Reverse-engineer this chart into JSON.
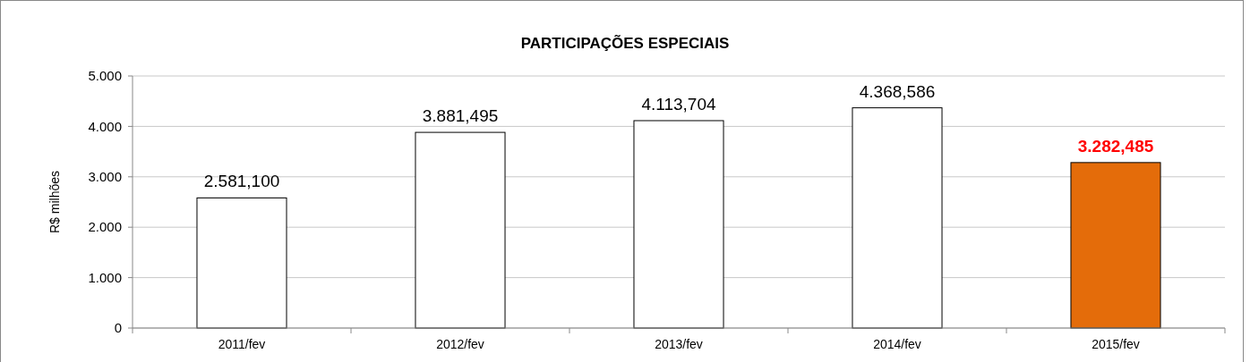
{
  "chart_data": {
    "type": "bar",
    "title": "PARTICIPAÇÕES ESPECIAIS",
    "ylabel": "R$ milhões",
    "categories": [
      "2011/fev",
      "2012/fev",
      "2013/fev",
      "2014/fev",
      "2015/fev"
    ],
    "values": [
      2581.1,
      3881.495,
      4113.704,
      4368.586,
      3282.485
    ],
    "colors": [
      "#ffffff",
      "#ffffff",
      "#ffffff",
      "#ffffff",
      "#e46c0a"
    ],
    "value_labels": [
      "2.581,100",
      "3.881,495",
      "4.113,704",
      "4.368,586",
      "3.282,485"
    ],
    "ylim": [
      0,
      5000
    ],
    "yticks": [
      {
        "value": 0,
        "label": "0"
      },
      {
        "value": 1000,
        "label": "1.000"
      },
      {
        "value": 2000,
        "label": "2.000"
      },
      {
        "value": 3000,
        "label": "3.000"
      },
      {
        "value": 4000,
        "label": "4.000"
      },
      {
        "value": 5000,
        "label": "5.000"
      }
    ],
    "grid": "y"
  }
}
